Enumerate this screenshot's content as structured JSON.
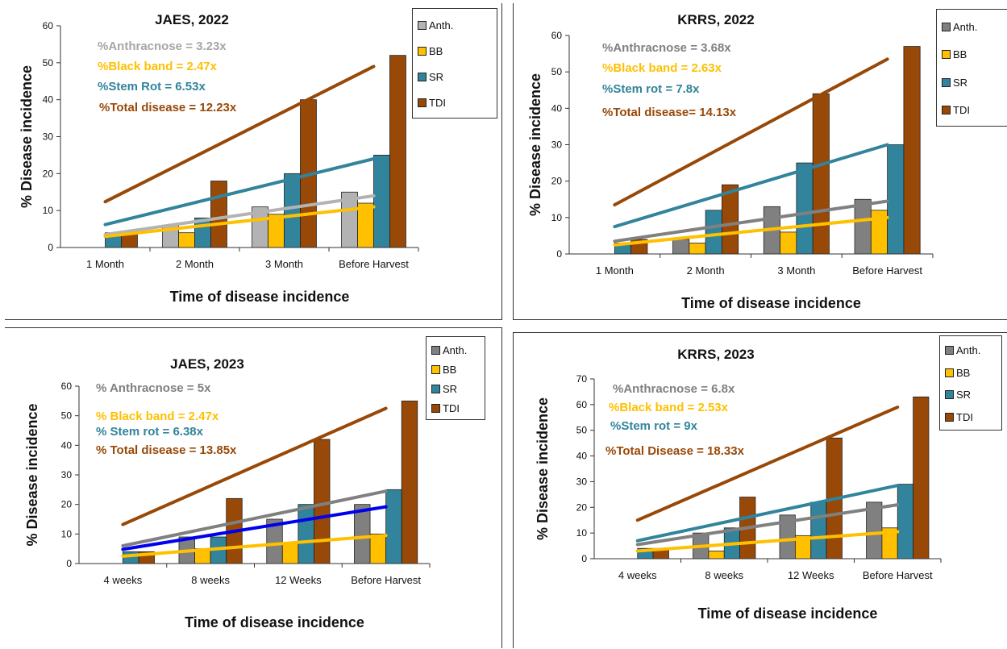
{
  "chart_data": [
    {
      "type": "bar",
      "title": "JAES, 2022",
      "xlabel": "Time of disease incidence",
      "ylabel": "% Disease incidence",
      "ylim": [
        0,
        60
      ],
      "yticks": [
        0,
        10,
        20,
        30,
        40,
        50,
        60
      ],
      "categories": [
        "1 Month",
        "2 Month",
        "3 Month",
        "Before Harvest"
      ],
      "series": [
        {
          "name": "Anth.",
          "color": "#b3b3b3",
          "values": [
            0,
            6,
            11,
            15
          ]
        },
        {
          "name": "BB",
          "color": "#ffc000",
          "values": [
            0,
            4,
            9,
            12
          ]
        },
        {
          "name": "SR",
          "color": "#31849b",
          "values": [
            4,
            8,
            20,
            25
          ]
        },
        {
          "name": "TDI",
          "color": "#984807",
          "values": [
            4,
            18,
            40,
            52
          ]
        }
      ],
      "trendlines": [
        {
          "series": "Anth.",
          "color": "#b3b3b3",
          "start": 3.5,
          "end": 14
        },
        {
          "series": "BB",
          "color": "#ffc000",
          "start": 3,
          "end": 11
        },
        {
          "series": "SR",
          "color": "#31849b",
          "start": 6.2,
          "end": 24
        },
        {
          "series": "TDI",
          "color": "#984807",
          "start": 12.4,
          "end": 49
        }
      ],
      "annotations": [
        {
          "text": "%Anthracnose = 3.23x",
          "color": "#a6a6a6"
        },
        {
          "text": "%Black band = 2.47x",
          "color": "#ffc000"
        },
        {
          "text": "%Stem Rot = 6.53x",
          "color": "#31849b"
        },
        {
          "text": "%Total disease = 12.23x",
          "color": "#984807"
        }
      ],
      "legend": "top-right"
    },
    {
      "type": "bar",
      "title": "KRRS, 2022",
      "xlabel": "Time of disease incidence",
      "ylabel": "% Disease incidence",
      "ylim": [
        0,
        60
      ],
      "yticks": [
        0,
        10,
        20,
        30,
        40,
        50,
        60
      ],
      "categories": [
        "1 Month",
        "2 Month",
        "3 Month",
        "Before Harvest"
      ],
      "series": [
        {
          "name": "Anth.",
          "color": "#808080",
          "values": [
            0,
            4,
            13,
            15
          ]
        },
        {
          "name": "BB",
          "color": "#ffc000",
          "values": [
            0,
            3,
            6,
            12
          ]
        },
        {
          "name": "SR",
          "color": "#31849b",
          "values": [
            3,
            12,
            25,
            30
          ]
        },
        {
          "name": "TDI",
          "color": "#984807",
          "values": [
            4,
            19,
            44,
            57
          ]
        }
      ],
      "trendlines": [
        {
          "series": "Anth.",
          "color": "#808080",
          "start": 3.5,
          "end": 14.5
        },
        {
          "series": "BB",
          "color": "#ffc000",
          "start": 2.5,
          "end": 10
        },
        {
          "series": "SR",
          "color": "#31849b",
          "start": 7.5,
          "end": 30
        },
        {
          "series": "TDI",
          "color": "#984807",
          "start": 13.5,
          "end": 53.5
        }
      ],
      "annotations": [
        {
          "text": "%Anthracnose  = 3.68x",
          "color": "#808080"
        },
        {
          "text": "%Black  band = 2.63x",
          "color": "#ffc000"
        },
        {
          "text": "%Stem rot = 7.8x",
          "color": "#31849b"
        },
        {
          "text": "%Total disease= 14.13x",
          "color": "#984807"
        }
      ],
      "legend": "top-right"
    },
    {
      "type": "bar",
      "title": "JAES, 2023",
      "xlabel": "Time of disease incidence",
      "ylabel": "% Disease incidence",
      "ylim": [
        0,
        60
      ],
      "yticks": [
        0,
        10,
        20,
        30,
        40,
        50,
        60
      ],
      "categories": [
        "4 weeks",
        "8 weeks",
        "12 Weeks",
        "Before Harvest"
      ],
      "series": [
        {
          "name": "Anth.",
          "color": "#808080",
          "values": [
            0,
            9,
            15,
            20
          ]
        },
        {
          "name": "BB",
          "color": "#ffc000",
          "values": [
            0,
            5,
            7,
            10
          ]
        },
        {
          "name": "SR",
          "color": "#31849b",
          "values": [
            4,
            9,
            20,
            25
          ]
        },
        {
          "name": "TDI",
          "color": "#984807",
          "values": [
            4,
            22,
            42,
            55
          ]
        }
      ],
      "trendlines": [
        {
          "series": "Anth.",
          "color": "#808080",
          "start": 6,
          "end": 24.5
        },
        {
          "series": "BB",
          "color": "#ffc000",
          "start": 2.5,
          "end": 9.5
        },
        {
          "series": "SR",
          "color": "#0000ee",
          "start": 4.8,
          "end": 19.2
        },
        {
          "series": "TDI",
          "color": "#984807",
          "start": 13.2,
          "end": 52.5
        }
      ],
      "annotations": [
        {
          "text": "% Anthracnose = 5x",
          "color": "#808080"
        },
        {
          "text": "% Black band = 2.47x",
          "color": "#ffc000"
        },
        {
          "text": "% Stem rot = 6.38x",
          "color": "#31849b"
        },
        {
          "text": "% Total disease = 13.85x",
          "color": "#984807"
        }
      ],
      "legend": "top-right"
    },
    {
      "type": "bar",
      "title": "KRRS, 2023",
      "xlabel": "Time of disease incidence",
      "ylabel": "% Disease incidence",
      "ylim": [
        0,
        70
      ],
      "yticks": [
        0,
        10,
        20,
        30,
        40,
        50,
        60,
        70
      ],
      "categories": [
        "4 weeks",
        "8 weeks",
        "12 Weeks",
        "Before Harvest"
      ],
      "series": [
        {
          "name": "Anth.",
          "color": "#808080",
          "values": [
            0,
            10,
            17,
            22
          ]
        },
        {
          "name": "BB",
          "color": "#ffc000",
          "values": [
            0,
            3,
            9,
            12
          ]
        },
        {
          "name": "SR",
          "color": "#31849b",
          "values": [
            4,
            12,
            22,
            29
          ]
        },
        {
          "name": "TDI",
          "color": "#984807",
          "values": [
            4,
            24,
            47,
            63
          ]
        }
      ],
      "trendlines": [
        {
          "series": "Anth.",
          "color": "#808080",
          "start": 5.5,
          "end": 21
        },
        {
          "series": "BB",
          "color": "#ffc000",
          "start": 3,
          "end": 10.5
        },
        {
          "series": "SR",
          "color": "#31849b",
          "start": 7,
          "end": 28.5
        },
        {
          "series": "TDI",
          "color": "#984807",
          "start": 15,
          "end": 59
        }
      ],
      "annotations": [
        {
          "text": "%Anthracnose = 6.8x",
          "color": "#808080"
        },
        {
          "text": "%Black band = 2.53x",
          "color": "#ffc000"
        },
        {
          "text": "%Stem rot = 9x",
          "color": "#31849b"
        },
        {
          "text": "%Total Disease = 18.33x",
          "color": "#984807"
        }
      ],
      "legend": "top-right"
    }
  ]
}
